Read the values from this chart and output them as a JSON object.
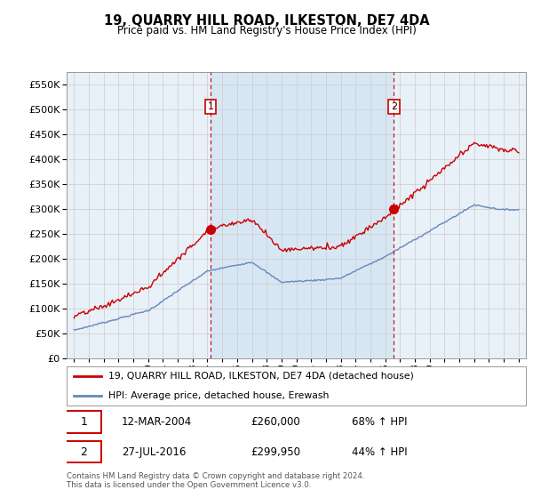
{
  "title": "19, QUARRY HILL ROAD, ILKESTON, DE7 4DA",
  "subtitle": "Price paid vs. HM Land Registry's House Price Index (HPI)",
  "legend_line1": "19, QUARRY HILL ROAD, ILKESTON, DE7 4DA (detached house)",
  "legend_line2": "HPI: Average price, detached house, Erewash",
  "sale1_label": "1",
  "sale1_date": "12-MAR-2004",
  "sale1_price": "£260,000",
  "sale1_hpi": "68% ↑ HPI",
  "sale1_year": 2004.2,
  "sale1_value": 260000,
  "sale2_label": "2",
  "sale2_date": "27-JUL-2016",
  "sale2_price": "£299,950",
  "sale2_hpi": "44% ↑ HPI",
  "sale2_year": 2016.57,
  "sale2_value": 299950,
  "footer": "Contains HM Land Registry data © Crown copyright and database right 2024.\nThis data is licensed under the Open Government Licence v3.0.",
  "red_color": "#cc0000",
  "blue_color": "#6688bb",
  "shade_color": "#ddeeff",
  "dashed_color": "#cc0000",
  "ylim": [
    0,
    575000
  ],
  "yticks": [
    0,
    50000,
    100000,
    150000,
    200000,
    250000,
    300000,
    350000,
    400000,
    450000,
    500000,
    550000
  ],
  "xlim_start": 1994.5,
  "xlim_end": 2025.5,
  "background_color": "#ffffff",
  "grid_color": "#cccccc"
}
